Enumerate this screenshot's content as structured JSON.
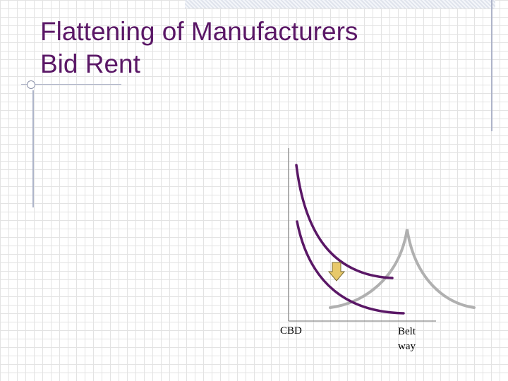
{
  "slide": {
    "title_line1": "Flattening of Manufacturers",
    "title_line2": "Bid Rent"
  },
  "diagram": {
    "label_cbd": "CBD",
    "label_belt_line1": "Belt",
    "label_belt_line2": "way",
    "colors": {
      "title": "#5a1766",
      "bid_rent_curves": "#5a1766",
      "beltway_curve": "#b0b0b0",
      "shift_arrow_fill": "#e8c96a",
      "shift_arrow_stroke": "#7a6a30"
    },
    "shift_arrow_direction": "down"
  }
}
